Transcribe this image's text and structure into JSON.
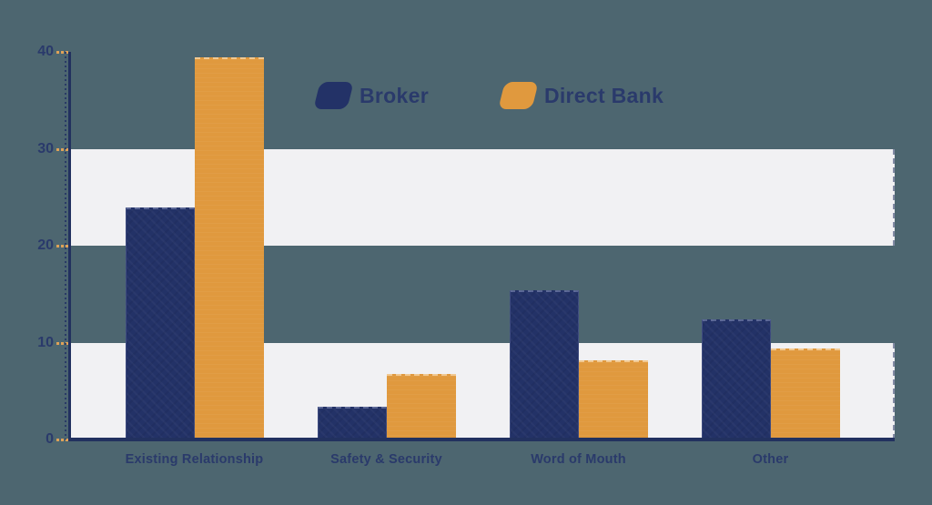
{
  "chart_data": {
    "type": "bar",
    "title": "",
    "xlabel": "",
    "ylabel": "",
    "categories": [
      "Existing Relationship",
      "Safety & Security",
      "Word of Mouth",
      "Other"
    ],
    "series": [
      {
        "name": "Broker",
        "color": "#233267",
        "values": [
          23.9,
          3.4,
          15.4,
          12.4
        ]
      },
      {
        "name": "Direct Bank",
        "color": "#e0993e",
        "values": [
          39.4,
          6.8,
          8.2,
          9.4
        ]
      }
    ],
    "ylim": [
      0,
      40
    ],
    "yticks": [
      0,
      10,
      20,
      30,
      40
    ],
    "grid": "horizontal-bands",
    "band_ranges": [
      [
        20,
        30
      ],
      [
        0,
        10
      ]
    ],
    "legend_position": "top-center"
  },
  "colors": {
    "background": "#4d6670",
    "band": "#f1f1f3",
    "axis": "#22315f",
    "text": "#2a3a6b",
    "tick_dash": "#dfa258",
    "broker": "#233267",
    "direct_bank": "#e0993e"
  }
}
